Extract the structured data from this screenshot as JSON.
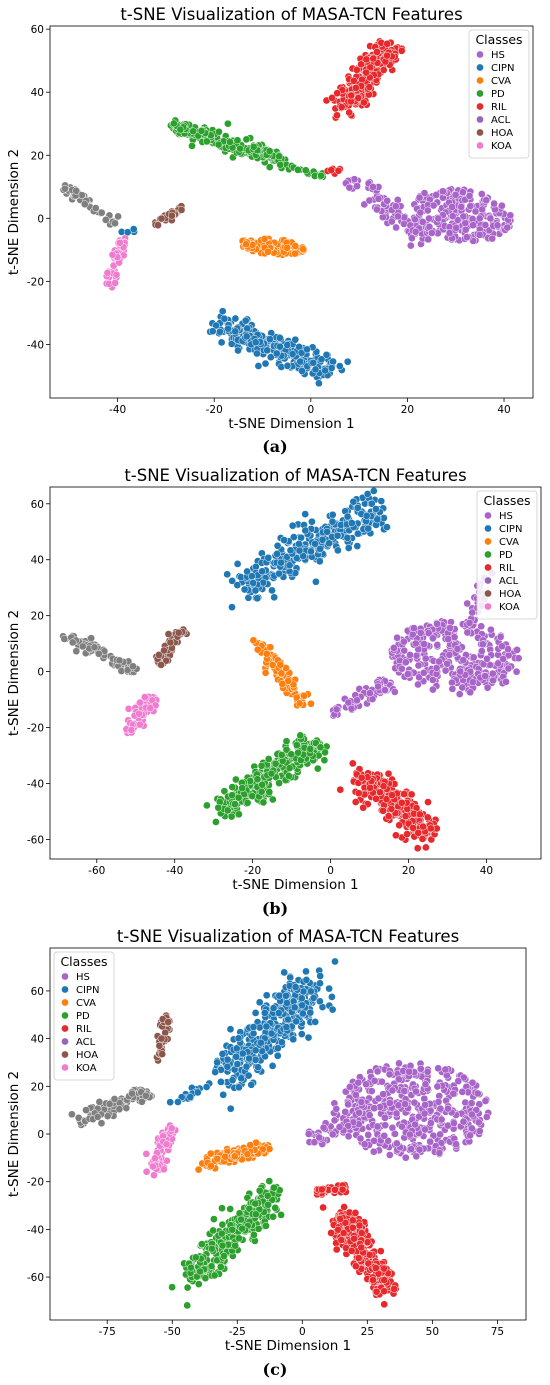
{
  "figure": {
    "title": "t-SNE Visualization of MASA-TCN Features",
    "xlabel": "t-SNE Dimension 1",
    "ylabel": "t-SNE Dimension 2",
    "legend_title": "Classes"
  },
  "classes": [
    {
      "name": "HS",
      "color": "#a864c8"
    },
    {
      "name": "CIPN",
      "color": "#1f77b4"
    },
    {
      "name": "CVA",
      "color": "#ff7f0e"
    },
    {
      "name": "PD",
      "color": "#2ca02c"
    },
    {
      "name": "RIL",
      "color": "#e8282b"
    },
    {
      "name": "ACL",
      "color": "#9467bd"
    },
    {
      "name": "HOA",
      "color": "#8c564b"
    },
    {
      "name": "KOA",
      "color": "#f07cd0"
    }
  ],
  "chart_data": [
    {
      "type": "scatter",
      "caption": "(a)",
      "title": "t-SNE Visualization of MASA-TCN Features",
      "xlabel": "t-SNE Dimension 1",
      "ylabel": "t-SNE Dimension 2",
      "xlim": [
        -54,
        46
      ],
      "ylim": [
        -57,
        61
      ],
      "xticks": [
        -40,
        -20,
        0,
        20,
        40
      ],
      "yticks": [
        -40,
        -20,
        0,
        20,
        40,
        60
      ],
      "grid": false,
      "legend_title": "Classes",
      "legend_position": "top-right",
      "clusters": [
        {
          "cls": "HS",
          "n": 90,
          "shape": "line",
          "from": [
            8,
            12
          ],
          "to": [
            24,
            -6
          ],
          "spread": [
            3,
            3
          ]
        },
        {
          "cls": "HS",
          "n": 230,
          "shape": "blob",
          "center": [
            31,
            1
          ],
          "r": [
            11,
            8
          ],
          "rot": -20
        },
        {
          "cls": "CIPN",
          "n": 280,
          "shape": "line",
          "from": [
            -19,
            -34
          ],
          "to": [
            5,
            -49
          ],
          "spread": [
            3,
            3.5
          ]
        },
        {
          "cls": "CVA",
          "n": 110,
          "shape": "blob",
          "center": [
            -8,
            -9
          ],
          "r": [
            7,
            2.5
          ],
          "rot": -8
        },
        {
          "cls": "PD",
          "n": 240,
          "shape": "line",
          "from": [
            -28,
            29
          ],
          "to": [
            -7,
            19
          ],
          "spread": [
            2,
            2.2
          ]
        },
        {
          "cls": "PD",
          "n": 20,
          "shape": "line",
          "from": [
            -6,
            17
          ],
          "to": [
            3,
            13
          ],
          "spread": [
            1,
            0.8
          ]
        },
        {
          "cls": "RIL",
          "n": 220,
          "shape": "line",
          "from": [
            7,
            35
          ],
          "to": [
            16,
            55
          ],
          "spread": [
            3,
            3
          ]
        },
        {
          "cls": "RIL",
          "n": 6,
          "shape": "blob",
          "center": [
            5,
            15
          ],
          "r": [
            2,
            1
          ],
          "rot": 0
        },
        {
          "cls": "HOA",
          "n": 35,
          "shape": "line",
          "from": [
            -32,
            -2
          ],
          "to": [
            -26,
            4
          ],
          "spread": [
            0.8,
            0.8
          ]
        },
        {
          "cls": "KOA",
          "n": 50,
          "shape": "line",
          "from": [
            -39,
            -7
          ],
          "to": [
            -42,
            -21
          ],
          "spread": [
            1.2,
            1.2
          ]
        },
        {
          "cls": "ACL",
          "n": 50,
          "shape": "line",
          "from": [
            -51,
            10
          ],
          "to": [
            -40,
            -2
          ],
          "spread": [
            1.2,
            1.2
          ],
          "color": "#7f7f7f"
        },
        {
          "cls": "CIPN",
          "n": 4,
          "shape": "blob",
          "center": [
            -38,
            -4
          ],
          "r": [
            2,
            1
          ],
          "rot": 0
        }
      ]
    },
    {
      "type": "scatter",
      "caption": "(b)",
      "title": "t-SNE Visualization of MASA-TCN Features",
      "xlabel": "t-SNE Dimension 1",
      "ylabel": "t-SNE Dimension 2",
      "xlim": [
        -72,
        54
      ],
      "ylim": [
        -67,
        66
      ],
      "xticks": [
        -60,
        -40,
        -20,
        0,
        20,
        40
      ],
      "yticks": [
        -60,
        -40,
        -20,
        0,
        20,
        40,
        60
      ],
      "grid": false,
      "legend_title": "Classes",
      "legend_position": "top-right",
      "clusters": [
        {
          "cls": "HS",
          "n": 320,
          "shape": "blob",
          "center": [
            32,
            5
          ],
          "r": [
            17,
            13
          ],
          "rot": -10
        },
        {
          "cls": "HS",
          "n": 70,
          "shape": "line",
          "from": [
            1,
            -15
          ],
          "to": [
            15,
            -4
          ],
          "spread": [
            2.2,
            2.2
          ]
        },
        {
          "cls": "HS",
          "n": 25,
          "shape": "line",
          "from": [
            36,
            18
          ],
          "to": [
            40,
            35
          ],
          "spread": [
            2,
            2
          ]
        },
        {
          "cls": "CIPN",
          "n": 300,
          "shape": "line",
          "from": [
            -22,
            31
          ],
          "to": [
            12,
            58
          ],
          "spread": [
            5,
            6
          ]
        },
        {
          "cls": "CVA",
          "n": 90,
          "shape": "line",
          "from": [
            -18,
            10
          ],
          "to": [
            -7,
            -12
          ],
          "spread": [
            2,
            2
          ]
        },
        {
          "cls": "PD",
          "n": 290,
          "shape": "line",
          "from": [
            -28,
            -50
          ],
          "to": [
            -5,
            -26
          ],
          "spread": [
            4,
            4.5
          ]
        },
        {
          "cls": "RIL",
          "n": 270,
          "shape": "line",
          "from": [
            8,
            -37
          ],
          "to": [
            25,
            -58
          ],
          "spread": [
            4,
            4.5
          ]
        },
        {
          "cls": "HOA",
          "n": 45,
          "shape": "line",
          "from": [
            -44,
            3
          ],
          "to": [
            -38,
            16
          ],
          "spread": [
            1.5,
            1.5
          ]
        },
        {
          "cls": "KOA",
          "n": 80,
          "shape": "line",
          "from": [
            -46,
            -10
          ],
          "to": [
            -52,
            -22
          ],
          "spread": [
            2,
            2.2
          ]
        },
        {
          "cls": "ACL",
          "n": 70,
          "shape": "line",
          "from": [
            -68,
            13
          ],
          "to": [
            -50,
            0
          ],
          "spread": [
            2,
            2
          ],
          "color": "#7f7f7f"
        }
      ]
    },
    {
      "type": "scatter",
      "caption": "(c)",
      "title": "t-SNE Visualization of MASA-TCN Features",
      "xlabel": "t-SNE Dimension 1",
      "ylabel": "t-SNE Dimension 2",
      "xlim": [
        -97,
        86
      ],
      "ylim": [
        -78,
        78
      ],
      "xticks": [
        -75,
        -50,
        -25,
        0,
        25,
        50,
        75
      ],
      "yticks": [
        -60,
        -40,
        -20,
        0,
        20,
        40,
        60
      ],
      "grid": false,
      "legend_title": "Classes",
      "legend_position": "top-left",
      "clusters": [
        {
          "cls": "HS",
          "n": 420,
          "shape": "blob",
          "center": [
            42,
            10
          ],
          "r": [
            30,
            20
          ],
          "rot": 0
        },
        {
          "cls": "HS",
          "n": 60,
          "shape": "line",
          "from": [
            5,
            -2
          ],
          "to": [
            25,
            10
          ],
          "spread": [
            4,
            4
          ]
        },
        {
          "cls": "CIPN",
          "n": 380,
          "shape": "line",
          "from": [
            -28,
            25
          ],
          "to": [
            5,
            62
          ],
          "spread": [
            8,
            9
          ]
        },
        {
          "cls": "CVA",
          "n": 130,
          "shape": "line",
          "from": [
            -38,
            -12
          ],
          "to": [
            -15,
            -6
          ],
          "spread": [
            4,
            3
          ]
        },
        {
          "cls": "PD",
          "n": 320,
          "shape": "line",
          "from": [
            -42,
            -60
          ],
          "to": [
            -12,
            -25
          ],
          "spread": [
            6,
            6
          ]
        },
        {
          "cls": "RIL",
          "n": 300,
          "shape": "line",
          "from": [
            15,
            -35
          ],
          "to": [
            32,
            -65
          ],
          "spread": [
            5,
            5
          ]
        },
        {
          "cls": "RIL",
          "n": 30,
          "shape": "line",
          "from": [
            5,
            -24
          ],
          "to": [
            18,
            -22
          ],
          "spread": [
            2,
            2
          ]
        },
        {
          "cls": "HOA",
          "n": 40,
          "shape": "line",
          "from": [
            -55,
            32
          ],
          "to": [
            -52,
            50
          ],
          "spread": [
            1.5,
            1.8
          ]
        },
        {
          "cls": "KOA",
          "n": 90,
          "shape": "line",
          "from": [
            -57,
            -16
          ],
          "to": [
            -50,
            4
          ],
          "spread": [
            2.5,
            2.5
          ]
        },
        {
          "cls": "ACL",
          "n": 90,
          "shape": "line",
          "from": [
            -86,
            5
          ],
          "to": [
            -60,
            18
          ],
          "spread": [
            3,
            3
          ],
          "color": "#7f7f7f"
        },
        {
          "cls": "CIPN",
          "n": 18,
          "shape": "line",
          "from": [
            -50,
            14
          ],
          "to": [
            -30,
            22
          ],
          "spread": [
            2,
            2
          ]
        }
      ]
    }
  ]
}
